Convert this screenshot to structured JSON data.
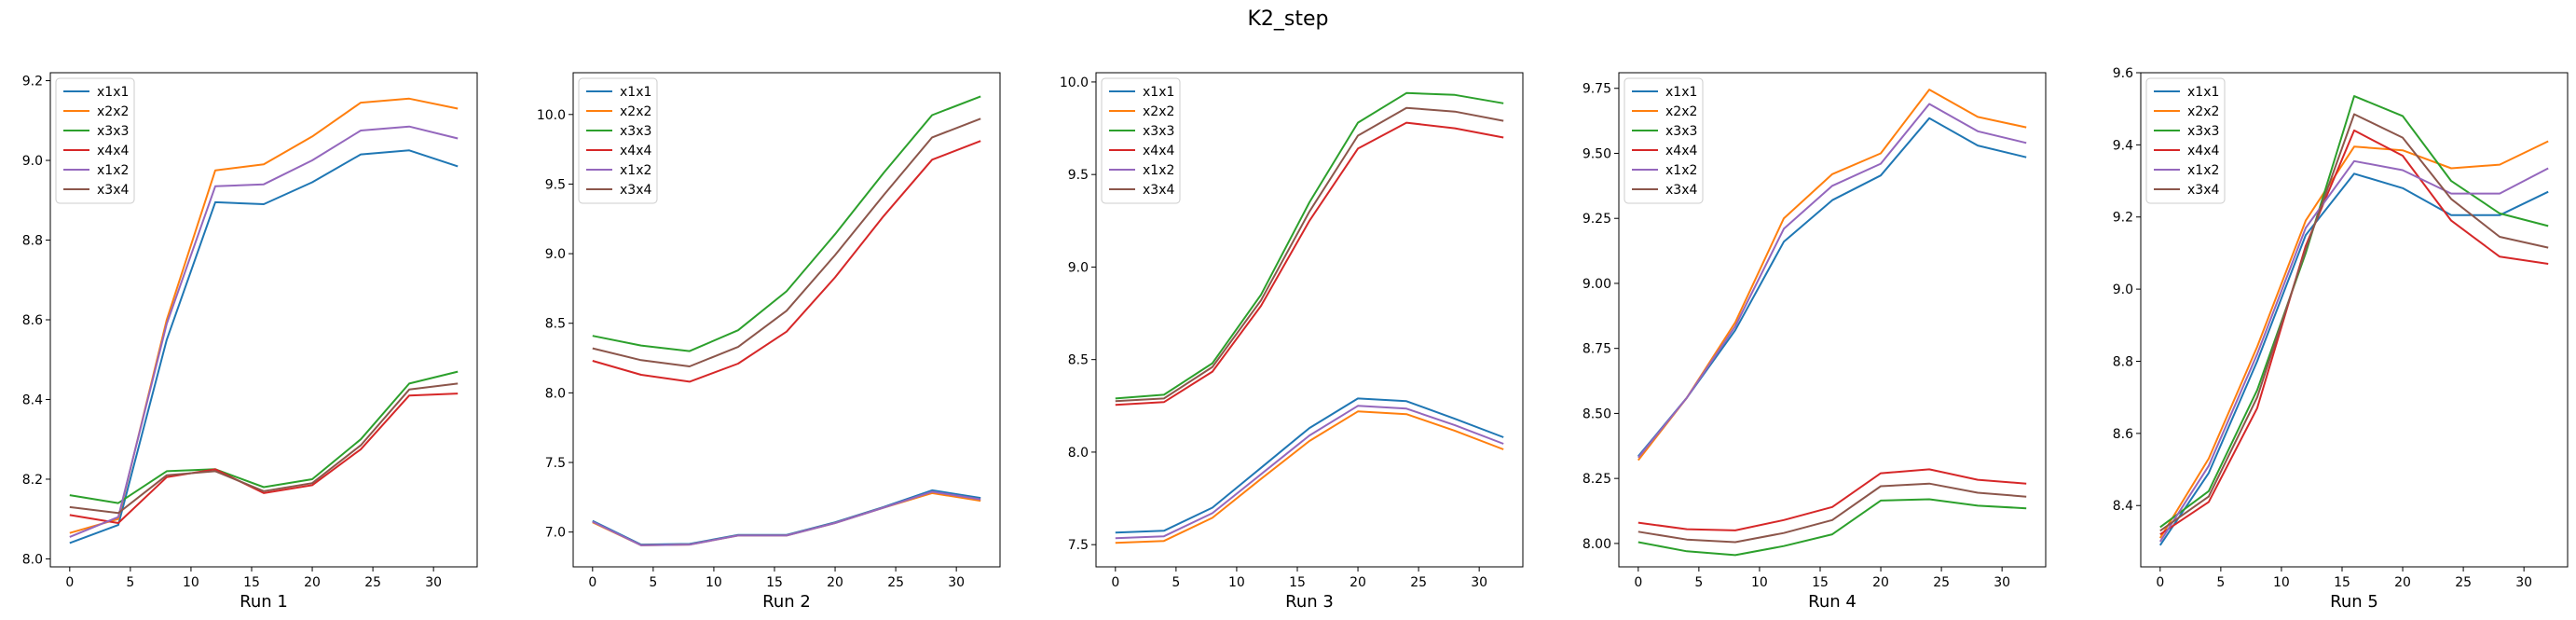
{
  "figure": {
    "title": "K2_step"
  },
  "chart_data": [
    {
      "type": "line",
      "xlabel": "Run 1",
      "x": [
        0,
        4,
        8,
        12,
        16,
        20,
        24,
        28,
        32
      ],
      "xticks": [
        0,
        5,
        10,
        15,
        20,
        25,
        30
      ],
      "ylim": [
        7.98,
        9.22
      ],
      "yticks": [
        8.0,
        8.2,
        8.4,
        8.6,
        8.8,
        9.0,
        9.2
      ],
      "ytick_decimals": 1,
      "legend": "top-left",
      "series": [
        {
          "name": "x1x1",
          "color": "#1f77b4",
          "values": [
            8.04,
            8.085,
            8.55,
            8.895,
            8.89,
            8.945,
            9.015,
            9.025,
            8.985
          ]
        },
        {
          "name": "x2x2",
          "color": "#ff7f0e",
          "values": [
            8.065,
            8.1,
            8.6,
            8.975,
            8.99,
            9.06,
            9.145,
            9.155,
            9.13
          ]
        },
        {
          "name": "x3x3",
          "color": "#2ca02c",
          "values": [
            8.16,
            8.14,
            8.22,
            8.225,
            8.18,
            8.2,
            8.3,
            8.44,
            8.47
          ]
        },
        {
          "name": "x4x4",
          "color": "#d62728",
          "values": [
            8.11,
            8.09,
            8.205,
            8.225,
            8.165,
            8.185,
            8.275,
            8.41,
            8.415
          ]
        },
        {
          "name": "x1x2",
          "color": "#9467bd",
          "values": [
            8.055,
            8.105,
            8.59,
            8.935,
            8.94,
            9.0,
            9.075,
            9.085,
            9.055
          ]
        },
        {
          "name": "x3x4",
          "color": "#8c564b",
          "values": [
            8.13,
            8.115,
            8.21,
            8.22,
            8.17,
            8.19,
            8.285,
            8.425,
            8.44
          ]
        }
      ]
    },
    {
      "type": "line",
      "xlabel": "Run 2",
      "x": [
        0,
        4,
        8,
        12,
        16,
        20,
        24,
        28,
        32
      ],
      "xticks": [
        0,
        5,
        10,
        15,
        20,
        25,
        30
      ],
      "ylim": [
        6.75,
        10.3
      ],
      "yticks": [
        7.0,
        7.5,
        8.0,
        8.5,
        9.0,
        9.5,
        10.0
      ],
      "ytick_decimals": 1,
      "legend": "top-left",
      "series": [
        {
          "name": "x1x1",
          "color": "#1f77b4",
          "values": [
            7.08,
            6.91,
            6.915,
            6.98,
            6.98,
            7.07,
            7.18,
            7.3,
            7.245
          ]
        },
        {
          "name": "x2x2",
          "color": "#ff7f0e",
          "values": [
            7.07,
            6.905,
            6.91,
            6.975,
            6.975,
            7.065,
            7.175,
            7.28,
            7.225
          ]
        },
        {
          "name": "x3x3",
          "color": "#2ca02c",
          "values": [
            8.41,
            8.34,
            8.3,
            8.45,
            8.73,
            9.14,
            9.58,
            9.995,
            10.13
          ]
        },
        {
          "name": "x4x4",
          "color": "#d62728",
          "values": [
            8.23,
            8.13,
            8.08,
            8.21,
            8.44,
            8.83,
            9.27,
            9.675,
            9.81
          ]
        },
        {
          "name": "x1x2",
          "color": "#9467bd",
          "values": [
            7.075,
            6.905,
            6.91,
            6.975,
            6.975,
            7.065,
            7.175,
            7.29,
            7.235
          ]
        },
        {
          "name": "x3x4",
          "color": "#8c564b",
          "values": [
            8.32,
            8.235,
            8.19,
            8.33,
            8.59,
            8.99,
            9.42,
            9.835,
            9.97
          ]
        }
      ]
    },
    {
      "type": "line",
      "xlabel": "Run 3",
      "x": [
        0,
        4,
        8,
        12,
        16,
        20,
        24,
        28,
        32
      ],
      "xticks": [
        0,
        5,
        10,
        15,
        20,
        25,
        30
      ],
      "ylim": [
        7.38,
        10.05
      ],
      "yticks": [
        7.5,
        8.0,
        8.5,
        9.0,
        9.5,
        10.0
      ],
      "ytick_decimals": 1,
      "legend": "top-left",
      "series": [
        {
          "name": "x1x1",
          "color": "#1f77b4",
          "values": [
            7.565,
            7.575,
            7.7,
            7.915,
            8.13,
            8.29,
            8.275,
            8.18,
            8.08
          ]
        },
        {
          "name": "x2x2",
          "color": "#ff7f0e",
          "values": [
            7.51,
            7.52,
            7.645,
            7.855,
            8.06,
            8.22,
            8.205,
            8.115,
            8.015
          ]
        },
        {
          "name": "x3x3",
          "color": "#2ca02c",
          "values": [
            8.29,
            8.31,
            8.48,
            8.85,
            9.35,
            9.78,
            9.94,
            9.93,
            9.885
          ]
        },
        {
          "name": "x4x4",
          "color": "#d62728",
          "values": [
            8.255,
            8.27,
            8.435,
            8.79,
            9.25,
            9.64,
            9.78,
            9.75,
            9.7
          ]
        },
        {
          "name": "x1x2",
          "color": "#9467bd",
          "values": [
            7.535,
            7.545,
            7.67,
            7.88,
            8.09,
            8.25,
            8.235,
            8.145,
            8.045
          ]
        },
        {
          "name": "x3x4",
          "color": "#8c564b",
          "values": [
            8.275,
            8.29,
            8.46,
            8.82,
            9.3,
            9.71,
            9.86,
            9.84,
            9.79
          ]
        }
      ]
    },
    {
      "type": "line",
      "xlabel": "Run 4",
      "x": [
        0,
        4,
        8,
        12,
        16,
        20,
        24,
        28,
        32
      ],
      "xticks": [
        0,
        5,
        10,
        15,
        20,
        25,
        30
      ],
      "ylim": [
        7.91,
        9.81
      ],
      "yticks": [
        8.0,
        8.25,
        8.5,
        8.75,
        9.0,
        9.25,
        9.5,
        9.75
      ],
      "ytick_decimals": 2,
      "legend": "top-left",
      "series": [
        {
          "name": "x1x1",
          "color": "#1f77b4",
          "values": [
            8.335,
            8.56,
            8.82,
            9.16,
            9.32,
            9.415,
            9.635,
            9.53,
            9.485
          ]
        },
        {
          "name": "x2x2",
          "color": "#ff7f0e",
          "values": [
            8.32,
            8.56,
            8.85,
            9.25,
            9.42,
            9.5,
            9.745,
            9.64,
            9.6
          ]
        },
        {
          "name": "x3x3",
          "color": "#2ca02c",
          "values": [
            8.005,
            7.97,
            7.955,
            7.99,
            8.035,
            8.165,
            8.17,
            8.145,
            8.135
          ]
        },
        {
          "name": "x4x4",
          "color": "#d62728",
          "values": [
            8.08,
            8.055,
            8.05,
            8.09,
            8.14,
            8.27,
            8.285,
            8.245,
            8.23
          ]
        },
        {
          "name": "x1x2",
          "color": "#9467bd",
          "values": [
            8.33,
            8.56,
            8.835,
            9.21,
            9.375,
            9.46,
            9.69,
            9.585,
            9.54
          ]
        },
        {
          "name": "x3x4",
          "color": "#8c564b",
          "values": [
            8.045,
            8.015,
            8.005,
            8.04,
            8.09,
            8.22,
            8.23,
            8.195,
            8.18
          ]
        }
      ]
    },
    {
      "type": "line",
      "xlabel": "Run 5",
      "x": [
        0,
        4,
        8,
        12,
        16,
        20,
        24,
        28,
        32
      ],
      "xticks": [
        0,
        5,
        10,
        15,
        20,
        25,
        30
      ],
      "ylim": [
        8.23,
        9.6
      ],
      "yticks": [
        8.4,
        8.6,
        8.8,
        9.0,
        9.2,
        9.4,
        9.6
      ],
      "ytick_decimals": 1,
      "legend": "top-left",
      "series": [
        {
          "name": "x1x1",
          "color": "#1f77b4",
          "values": [
            8.29,
            8.49,
            8.8,
            9.15,
            9.32,
            9.28,
            9.205,
            9.205,
            9.27
          ]
        },
        {
          "name": "x2x2",
          "color": "#ff7f0e",
          "values": [
            8.31,
            8.53,
            8.84,
            9.19,
            9.395,
            9.385,
            9.335,
            9.345,
            9.41
          ]
        },
        {
          "name": "x3x3",
          "color": "#2ca02c",
          "values": [
            8.34,
            8.44,
            8.72,
            9.1,
            9.535,
            9.48,
            9.3,
            9.21,
            9.175
          ]
        },
        {
          "name": "x4x4",
          "color": "#d62728",
          "values": [
            8.32,
            8.41,
            8.67,
            9.12,
            9.44,
            9.37,
            9.19,
            9.09,
            9.07
          ]
        },
        {
          "name": "x1x2",
          "color": "#9467bd",
          "values": [
            8.3,
            8.51,
            8.82,
            9.17,
            9.355,
            9.33,
            9.265,
            9.265,
            9.335
          ]
        },
        {
          "name": "x3x4",
          "color": "#8c564b",
          "values": [
            8.33,
            8.425,
            8.7,
            9.11,
            9.485,
            9.42,
            9.25,
            9.145,
            9.115
          ]
        }
      ]
    }
  ]
}
